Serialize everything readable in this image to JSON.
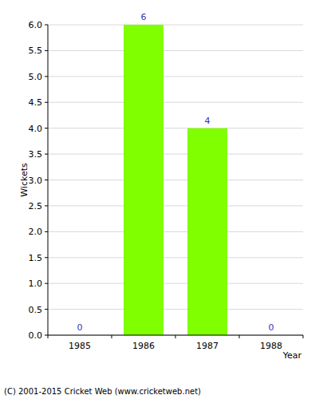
{
  "chart_data": {
    "type": "bar",
    "categories": [
      "1985",
      "1986",
      "1987",
      "1988"
    ],
    "values": [
      0,
      6,
      4,
      0
    ],
    "color": "#80ff00",
    "x_label": "Year",
    "y_label": "Wickets",
    "annotations": [
      "(C) 2001-2015 Cricket Web (www.cricketweb.net)"
    ],
    "ylim": [
      0,
      6
    ],
    "yticks": [
      {
        "value": 0,
        "label": "0.0"
      },
      {
        "value": 0.5,
        "label": "0.5"
      },
      {
        "value": 1,
        "label": "1.0"
      },
      {
        "value": 1.5,
        "label": "1.5"
      },
      {
        "value": 2,
        "label": "2.0"
      },
      {
        "value": 2.5,
        "label": "2.5"
      },
      {
        "value": 3,
        "label": "3.0"
      },
      {
        "value": 3.5,
        "label": "3.5"
      },
      {
        "value": 4,
        "label": "4.0"
      },
      {
        "value": 4.5,
        "label": "4.5"
      },
      {
        "value": 5,
        "label": "5.0"
      },
      {
        "value": 5.5,
        "label": "5.5"
      },
      {
        "value": 6,
        "label": "6.0"
      }
    ],
    "grid": true,
    "data_labels": true
  }
}
